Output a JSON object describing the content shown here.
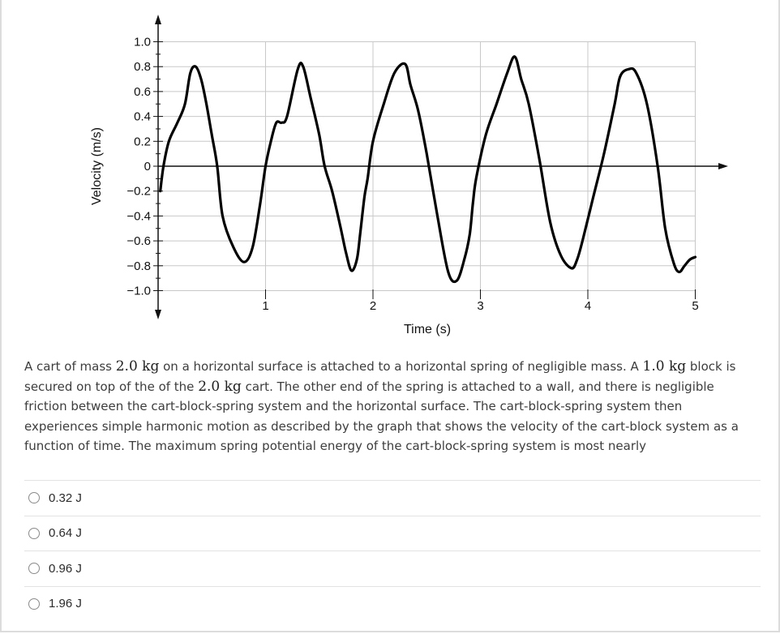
{
  "chart_data": {
    "type": "line",
    "ylabel": "Velocity (m/s)",
    "xlabel": "Time (s)",
    "xlim": [
      -0.05,
      5.1
    ],
    "ylim": [
      -1.0,
      1.0
    ],
    "x_ticks": [
      1,
      2,
      3,
      4,
      5
    ],
    "x_tick_labels": [
      "1",
      "2",
      "3",
      "4",
      "5"
    ],
    "y_ticks": [
      1.0,
      0.8,
      0.6,
      0.4,
      0.2,
      0,
      -0.2,
      -0.4,
      -0.6,
      -0.8,
      -1.0
    ],
    "y_tick_labels": [
      "1.0",
      "0.8",
      "0.6",
      "0.4",
      "0.2",
      "0",
      "−0.2",
      "−0.4",
      "−0.6",
      "−0.8",
      "−1.0"
    ],
    "grid": true,
    "series": [
      {
        "x": [
          0.02,
          0.05,
          0.1,
          0.18,
          0.25,
          0.3,
          0.35,
          0.4,
          0.45,
          0.5,
          0.55,
          0.6,
          0.7,
          0.8,
          0.88,
          0.95,
          1.0,
          1.05,
          1.1,
          1.15,
          1.2,
          1.3,
          1.35,
          1.42,
          1.5,
          1.55,
          1.62,
          1.7,
          1.75,
          1.8,
          1.85,
          1.88,
          1.92,
          1.95,
          2.0,
          2.1,
          2.2,
          2.3,
          2.35,
          2.42,
          2.5,
          2.6,
          2.7,
          2.78,
          2.85,
          2.9,
          2.93,
          2.96,
          3.05,
          3.15,
          3.25,
          3.32,
          3.38,
          3.45,
          3.55,
          3.65,
          3.75,
          3.85,
          3.9,
          3.95,
          4.05,
          4.15,
          4.25,
          4.3,
          4.38,
          4.45,
          4.55,
          4.65,
          4.72,
          4.8,
          4.85,
          4.9,
          4.95,
          5.0
        ],
        "y": [
          -0.2,
          0.0,
          0.2,
          0.35,
          0.5,
          0.75,
          0.8,
          0.7,
          0.5,
          0.25,
          0.0,
          -0.4,
          -0.65,
          -0.77,
          -0.65,
          -0.3,
          0.0,
          0.2,
          0.35,
          0.35,
          0.4,
          0.78,
          0.8,
          0.55,
          0.25,
          0.0,
          -0.2,
          -0.5,
          -0.7,
          -0.84,
          -0.75,
          -0.55,
          -0.25,
          -0.1,
          0.2,
          0.5,
          0.75,
          0.82,
          0.65,
          0.45,
          0.1,
          -0.4,
          -0.85,
          -0.92,
          -0.75,
          -0.55,
          -0.3,
          -0.1,
          0.25,
          0.5,
          0.75,
          0.88,
          0.7,
          0.5,
          0.05,
          -0.45,
          -0.72,
          -0.82,
          -0.75,
          -0.6,
          -0.25,
          0.1,
          0.5,
          0.72,
          0.78,
          0.75,
          0.5,
          0.0,
          -0.5,
          -0.78,
          -0.85,
          -0.8,
          -0.75,
          -0.73
        ]
      }
    ]
  },
  "question": {
    "seg1": "A cart of mass ",
    "m1": "2.0 kg",
    "seg2": " on a horizontal surface is attached to a horizontal spring of negligible mass. A ",
    "m2": "1.0 kg",
    "seg3": " block is secured on top of the of the ",
    "m3": "2.0 kg",
    "seg4": " cart. The other end of the spring is attached to a wall, and there is negligible friction between the cart-block-spring system and the horizontal surface. The cart-block-spring system then experiences simple harmonic motion as described by the graph that shows the velocity of the cart-block system as a function of time. The maximum spring potential energy of the cart-block-spring system is most nearly"
  },
  "options": [
    "0.32 J",
    "0.64 J",
    "0.96 J",
    "1.96 J"
  ]
}
